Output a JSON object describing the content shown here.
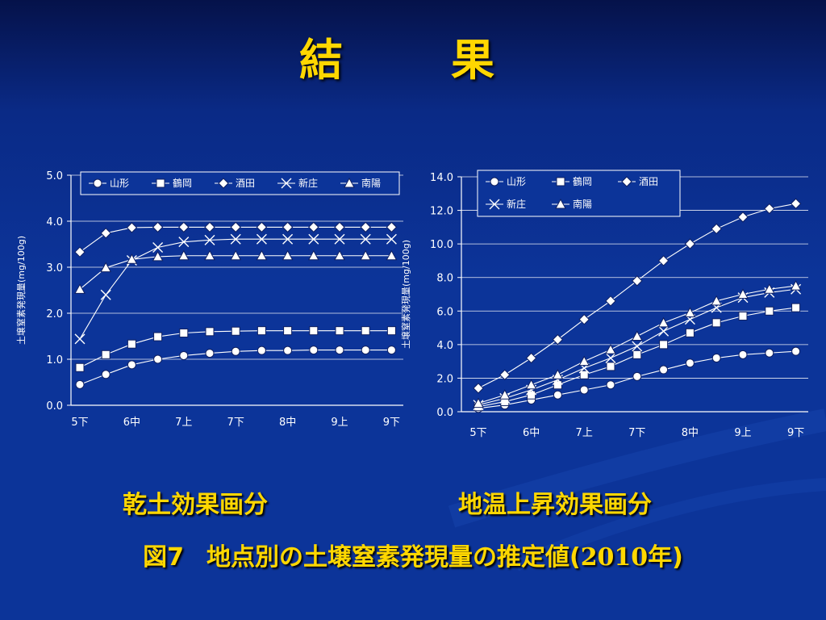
{
  "slide": {
    "title": "結　果",
    "caption_left": "乾土効果画分",
    "caption_right": "地温上昇効果画分",
    "figure_label": "図7",
    "figure_text": "地点別の土壌窒素発現量の推定値(",
    "figure_year": "2010",
    "figure_suffix": "年)"
  },
  "chart_data": [
    {
      "type": "line",
      "ylabel": "土壌窒素発現量(mg/100g)",
      "ylim": [
        0,
        5
      ],
      "yticks": [
        "0.0",
        "1.0",
        "2.0",
        "3.0",
        "4.0",
        "5.0"
      ],
      "x_tick_labels": [
        "5下",
        "6中",
        "7上",
        "7下",
        "8中",
        "9上",
        "9下"
      ],
      "point_count": 13,
      "legend_position": "top",
      "series": [
        {
          "name": "山形",
          "marker": "circle",
          "values": [
            0.45,
            0.67,
            0.88,
            1.0,
            1.08,
            1.13,
            1.17,
            1.19,
            1.19,
            1.2,
            1.2,
            1.2,
            1.2
          ]
        },
        {
          "name": "鶴岡",
          "marker": "square",
          "values": [
            0.82,
            1.1,
            1.33,
            1.49,
            1.57,
            1.6,
            1.61,
            1.62,
            1.62,
            1.62,
            1.62,
            1.62,
            1.62
          ]
        },
        {
          "name": "酒田",
          "marker": "diamond",
          "values": [
            3.33,
            3.74,
            3.86,
            3.87,
            3.87,
            3.87,
            3.87,
            3.87,
            3.87,
            3.87,
            3.87,
            3.87,
            3.87
          ]
        },
        {
          "name": "新庄",
          "marker": "x",
          "values": [
            1.44,
            2.4,
            3.15,
            3.43,
            3.55,
            3.59,
            3.61,
            3.61,
            3.61,
            3.61,
            3.61,
            3.61,
            3.61
          ]
        },
        {
          "name": "南陽",
          "marker": "triangle",
          "values": [
            2.52,
            2.99,
            3.17,
            3.23,
            3.25,
            3.25,
            3.25,
            3.25,
            3.25,
            3.25,
            3.25,
            3.25,
            3.25
          ]
        }
      ]
    },
    {
      "type": "line",
      "ylabel": "土壌窒素発現量(mg/100g)",
      "ylim": [
        0,
        14
      ],
      "yticks": [
        "0.0",
        "2.0",
        "4.0",
        "6.0",
        "8.0",
        "10.0",
        "12.0",
        "14.0"
      ],
      "x_tick_labels": [
        "5下",
        "6中",
        "7上",
        "7下",
        "8中",
        "9上",
        "9下"
      ],
      "point_count": 13,
      "legend_position": "top-left",
      "series": [
        {
          "name": "山形",
          "marker": "circle",
          "values": [
            0.2,
            0.4,
            0.7,
            1.0,
            1.3,
            1.6,
            2.1,
            2.5,
            2.9,
            3.2,
            3.4,
            3.5,
            3.6
          ]
        },
        {
          "name": "鶴岡",
          "marker": "square",
          "values": [
            0.3,
            0.6,
            1.0,
            1.6,
            2.2,
            2.7,
            3.4,
            4.0,
            4.7,
            5.3,
            5.7,
            6.0,
            6.2
          ]
        },
        {
          "name": "酒田",
          "marker": "diamond",
          "values": [
            1.4,
            2.2,
            3.2,
            4.3,
            5.5,
            6.6,
            7.8,
            9.0,
            10.0,
            10.9,
            11.6,
            12.1,
            12.4
          ]
        },
        {
          "name": "新庄",
          "marker": "x",
          "values": [
            0.4,
            0.8,
            1.3,
            1.9,
            2.6,
            3.2,
            3.9,
            4.8,
            5.5,
            6.2,
            6.8,
            7.1,
            7.3
          ]
        },
        {
          "name": "南陽",
          "marker": "triangle",
          "values": [
            0.5,
            1.0,
            1.6,
            2.2,
            3.0,
            3.7,
            4.5,
            5.3,
            5.9,
            6.6,
            7.0,
            7.3,
            7.5
          ]
        }
      ]
    }
  ]
}
